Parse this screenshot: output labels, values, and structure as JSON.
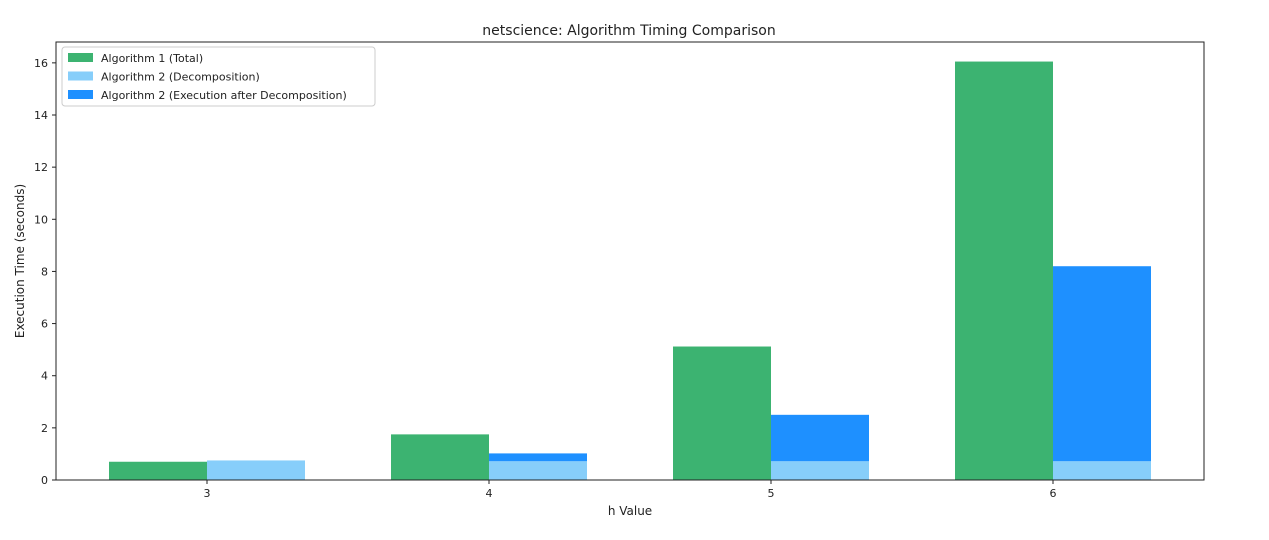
{
  "chart_data": {
    "type": "bar",
    "title": "netscience: Algorithm Timing Comparison",
    "xlabel": "h Value",
    "ylabel": "Execution Time (seconds)",
    "categories": [
      "3",
      "4",
      "5",
      "6"
    ],
    "ylim": [
      0,
      16.8
    ],
    "yticks": [
      0,
      2,
      4,
      6,
      8,
      10,
      12,
      14,
      16
    ],
    "grid": false,
    "legend_position": "top-left",
    "series": [
      {
        "name": "Algorithm 1 (Total)",
        "color": "#3cb371",
        "group": "algorithm-1",
        "values": [
          0.7,
          1.75,
          5.12,
          16.05
        ]
      },
      {
        "name": "Algorithm 2 (Decomposition)",
        "color": "#87cefa",
        "group": "algorithm-2",
        "stack_base": true,
        "values": [
          0.75,
          0.72,
          0.72,
          0.72
        ]
      },
      {
        "name": "Algorithm 2 (Execution after Decomposition)",
        "color": "#1e90ff",
        "group": "algorithm-2",
        "stacked_on": "Algorithm 2 (Decomposition)",
        "values": [
          0.0,
          0.3,
          1.78,
          7.48
        ]
      }
    ]
  }
}
